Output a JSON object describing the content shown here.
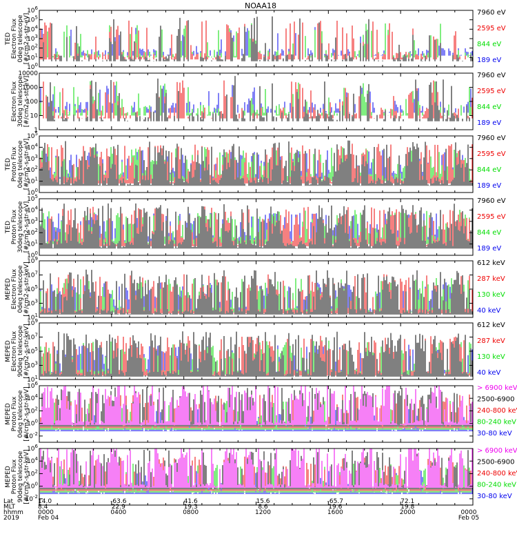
{
  "title": "NOAA18",
  "colors": {
    "black": "#000000",
    "red": "#ee0000",
    "green": "#00dd00",
    "blue": "#0000ee",
    "magenta": "#ee00ee",
    "axis": "#000000"
  },
  "footer": {
    "row_labels": [
      "Lat",
      "MLT",
      "hhmm",
      "2019"
    ],
    "columns": [
      {
        "lat": "14.0",
        "mlt": "8.4",
        "hhmm": "0000",
        "date": "Feb 04"
      },
      {
        "lat": "-63.6",
        "mlt": "22.9",
        "hhmm": "0400",
        "date": ""
      },
      {
        "lat": "41.6",
        "mlt": "19.3",
        "hhmm": "0800",
        "date": ""
      },
      {
        "lat": "15.6",
        "mlt": "8.6",
        "hhmm": "1200",
        "date": ""
      },
      {
        "lat": "-65.7",
        "mlt": "19.6",
        "hhmm": "1600",
        "date": ""
      },
      {
        "lat": "72.1",
        "mlt": "19.8",
        "hhmm": "2000",
        "date": ""
      },
      {
        "lat": "",
        "mlt": "",
        "hhmm": "0000",
        "date": "Feb 05"
      }
    ]
  },
  "chart_data": [
    {
      "type": "line",
      "ylabel_lines": [
        "TED",
        "Electron Flux",
        "0deg telescope",
        "[#/cm2-s-str-eV]"
      ],
      "y_log_range": [
        0,
        6
      ],
      "tick_exponents": [
        0,
        1,
        2,
        3,
        4,
        5,
        6
      ],
      "tick_format": "exp",
      "series": [
        {
          "name": "7960 eV",
          "color": "black"
        },
        {
          "name": "2595 eV",
          "color": "red"
        },
        {
          "name": "844 eV",
          "color": "green"
        },
        {
          "name": "189 eV",
          "color": "blue"
        }
      ]
    },
    {
      "type": "line",
      "ylabel_lines": [
        "Electron Flux",
        "30deg telescope",
        "[#/cm2-s-str-eV]"
      ],
      "y_log_range": [
        0,
        4
      ],
      "tick_exponents": [
        0,
        1,
        2,
        3,
        4
      ],
      "tick_format": "plain",
      "tick_labels": [
        "1",
        "10",
        "100",
        "1000",
        "10000"
      ],
      "series": [
        {
          "name": "7960 eV",
          "color": "black"
        },
        {
          "name": "2595 eV",
          "color": "red"
        },
        {
          "name": "844 eV",
          "color": "green"
        },
        {
          "name": "189 eV",
          "color": "blue"
        }
      ]
    },
    {
      "type": "line",
      "ylabel_lines": [
        "TED",
        "Proton Flux",
        "0deg telescope",
        "[#/cm2-s-str-eV]"
      ],
      "y_log_range": [
        0,
        5
      ],
      "tick_exponents": [
        0,
        1,
        2,
        3,
        4,
        5
      ],
      "tick_format": "exp",
      "series": [
        {
          "name": "7960 eV",
          "color": "black"
        },
        {
          "name": "2595 eV",
          "color": "red"
        },
        {
          "name": "844 eV",
          "color": "green"
        },
        {
          "name": "189 eV",
          "color": "blue"
        }
      ]
    },
    {
      "type": "line",
      "ylabel_lines": [
        "TED",
        "Proton Flux",
        "30deg telescope",
        "[#/cm2-s-str-eV]"
      ],
      "y_log_range": [
        0,
        5
      ],
      "tick_exponents": [
        0,
        1,
        2,
        3,
        4,
        5
      ],
      "tick_format": "exp",
      "series": [
        {
          "name": "7960 eV",
          "color": "black"
        },
        {
          "name": "2595 eV",
          "color": "red"
        },
        {
          "name": "844 eV",
          "color": "green"
        },
        {
          "name": "189 eV",
          "color": "blue"
        }
      ]
    },
    {
      "type": "line",
      "ylabel_lines": [
        "MEPED",
        "Electron Flux",
        "0deg telescope",
        "[#/cm2-s-str-keV]"
      ],
      "y_log_range": [
        1,
        9
      ],
      "tick_exponents": [
        1,
        3,
        5,
        7,
        9
      ],
      "tick_format": "exp",
      "series": [
        {
          "name": "612 keV",
          "color": "black"
        },
        {
          "name": "287 keV",
          "color": "red"
        },
        {
          "name": "130 keV",
          "color": "green"
        },
        {
          "name": "40 keV",
          "color": "blue"
        }
      ]
    },
    {
      "type": "line",
      "ylabel_lines": [
        "MEPED",
        "Electron Flux",
        "90deg telescope",
        "[#/cm2-s-str-keV]"
      ],
      "y_log_range": [
        1,
        9
      ],
      "tick_exponents": [
        1,
        3,
        5,
        7,
        9
      ],
      "tick_format": "exp",
      "series": [
        {
          "name": "612 keV",
          "color": "black"
        },
        {
          "name": "287 keV",
          "color": "red"
        },
        {
          "name": "130 keV",
          "color": "green"
        },
        {
          "name": "40 keV",
          "color": "blue"
        }
      ]
    },
    {
      "type": "line",
      "ylabel_lines": [
        "MEPED",
        "Proton Flux",
        "0deg telescope",
        "[#/cm2-s-str-keV]"
      ],
      "y_log_range": [
        -3,
        6
      ],
      "tick_exponents": [
        -2,
        0,
        2,
        4,
        6
      ],
      "tick_format": "exp",
      "series": [
        {
          "name": "> 6900 keV",
          "color": "magenta"
        },
        {
          "name": "2500-6900",
          "color": "black"
        },
        {
          "name": "240-800 keV",
          "color": "red"
        },
        {
          "name": "80-240 keV",
          "color": "green"
        },
        {
          "name": "30-80 keV",
          "color": "blue"
        }
      ]
    },
    {
      "type": "line",
      "ylabel_lines": [
        "MEPED",
        "Proton Flux",
        "90deg telescope",
        "[#/cm2-s-str-keV]"
      ],
      "y_log_range": [
        -3,
        6
      ],
      "tick_exponents": [
        -2,
        0,
        2,
        4,
        6
      ],
      "tick_format": "exp",
      "series": [
        {
          "name": "> 6900 keV",
          "color": "magenta"
        },
        {
          "name": "2500-6900",
          "color": "black"
        },
        {
          "name": "240-800 keV",
          "color": "red"
        },
        {
          "name": "80-240 keV",
          "color": "green"
        },
        {
          "name": "30-80 keV",
          "color": "blue"
        }
      ]
    }
  ]
}
